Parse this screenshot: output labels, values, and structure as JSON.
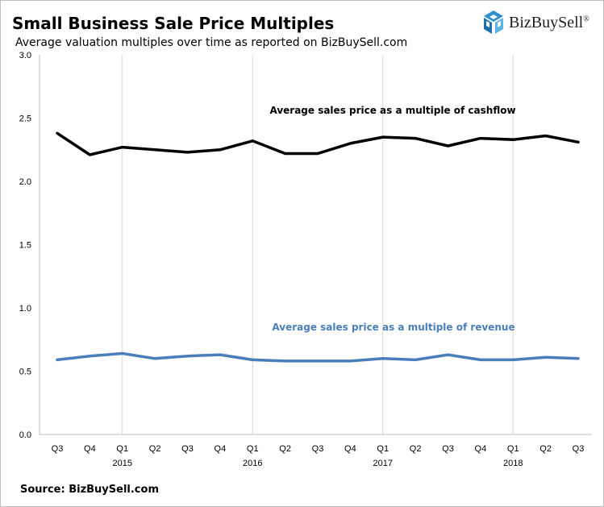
{
  "title": "Small Business Sale Price Multiples",
  "subtitle": "Average valuation multiples over time as reported  on BizBuySell.com",
  "brand": {
    "name": "BizBuySell",
    "trademark": "®",
    "icon": "bizbuysell-cube-icon",
    "color": "#2b8fd0"
  },
  "source": "Source: BizBuySell.com",
  "chart_data": {
    "type": "line",
    "title": "Small Business Sale Price Multiples",
    "subtitle": "Average valuation multiples over time as reported  on BizBuySell.com",
    "categories": [
      "Q3",
      "Q4",
      "Q1",
      "Q2",
      "Q3",
      "Q4",
      "Q1",
      "Q2",
      "Q3",
      "Q4",
      "Q1",
      "Q2",
      "Q3",
      "Q4",
      "Q1",
      "Q2",
      "Q3"
    ],
    "year_labels": [
      {
        "index": 2,
        "label": "2015"
      },
      {
        "index": 6,
        "label": "2016"
      },
      {
        "index": 10,
        "label": "2017"
      },
      {
        "index": 14,
        "label": "2018"
      }
    ],
    "ylim": [
      0,
      3
    ],
    "yticks": [
      "0.0",
      "0.5",
      "1.0",
      "1.5",
      "2.0",
      "2.5",
      "3.0"
    ],
    "ytick_values": [
      0,
      0.5,
      1.0,
      1.5,
      2.0,
      2.5,
      3.0
    ],
    "grid": "vertical lines at Q1 of each year",
    "series": [
      {
        "name": "Average sales price as a multiple of cashflow",
        "color": "#000000",
        "values": [
          2.38,
          2.21,
          2.27,
          2.25,
          2.23,
          2.25,
          2.32,
          2.22,
          2.22,
          2.3,
          2.35,
          2.34,
          2.28,
          2.34,
          2.33,
          2.36,
          2.31
        ]
      },
      {
        "name": "Average sales price as a multiple of revenue",
        "color": "#4a7ebb",
        "values": [
          0.59,
          0.62,
          0.64,
          0.6,
          0.62,
          0.63,
          0.59,
          0.58,
          0.58,
          0.58,
          0.6,
          0.59,
          0.63,
          0.59,
          0.59,
          0.61,
          0.6
        ]
      }
    ]
  }
}
